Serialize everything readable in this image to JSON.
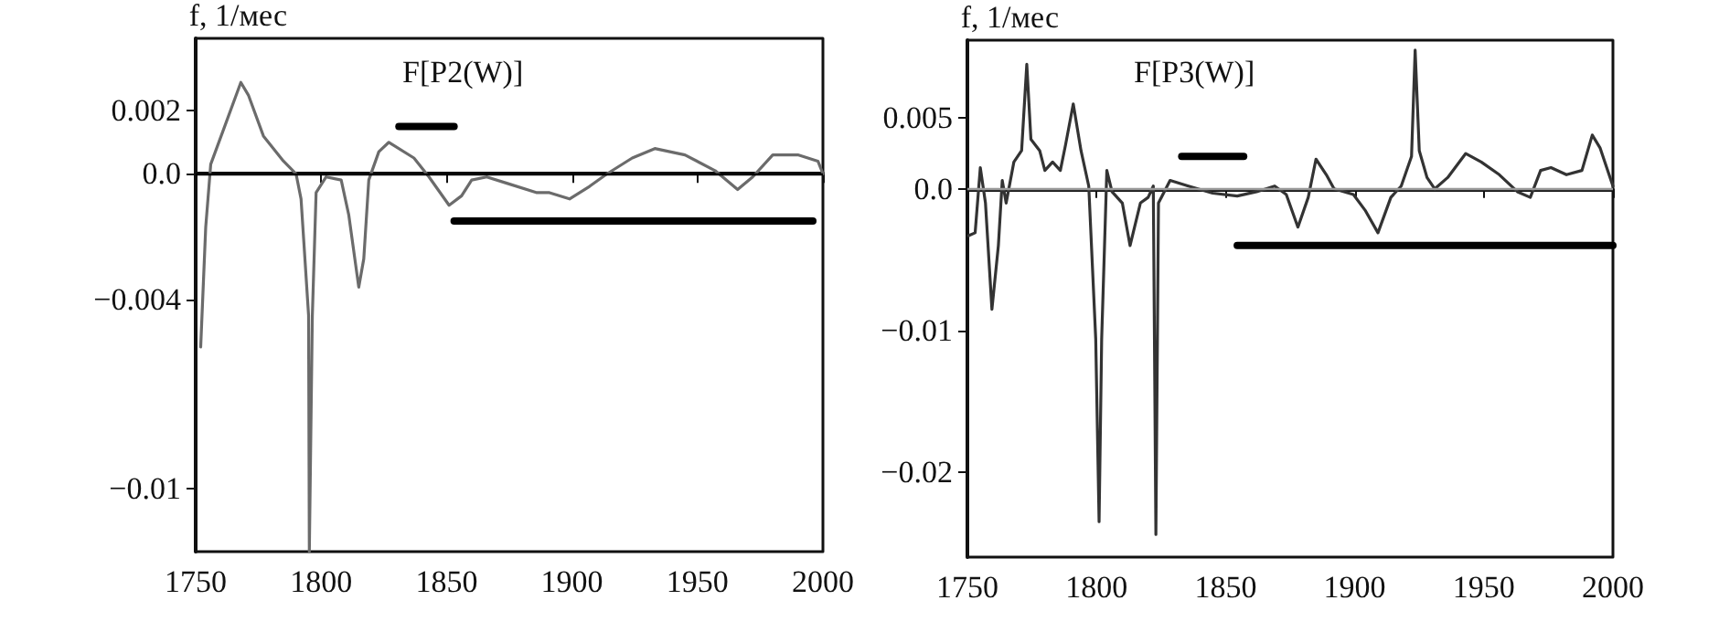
{
  "chart_data": [
    {
      "type": "line",
      "title": "F[P2(W)]",
      "ylabel": "f, 1/мес",
      "xlim": [
        1750,
        2000
      ],
      "xticks": [
        1750,
        1800,
        1850,
        1900,
        1950,
        2000
      ],
      "ylim": [
        -0.012,
        0.0043
      ],
      "yticks": [
        {
          "value": 0.002,
          "label": "0.002"
        },
        {
          "value": 0,
          "label": "0.0"
        },
        {
          "value": -0.004,
          "label": "−0.004"
        },
        {
          "value": -0.01,
          "label": "−0.01"
        }
      ],
      "marker": "none",
      "line_style": "solid",
      "ref_lines": [
        {
          "axis": "y",
          "value": 0,
          "color": "#000000"
        }
      ],
      "series": [
        {
          "color": "#6b6b6b",
          "x": [
            1752,
            1754,
            1756,
            1762,
            1768,
            1771,
            1777,
            1785,
            1790,
            1792,
            1795,
            1795.3,
            1796.5,
            1798,
            1802,
            1808,
            1811,
            1815,
            1817,
            1819,
            1823,
            1827,
            1837,
            1843,
            1851,
            1856,
            1860,
            1866,
            1874,
            1886,
            1891,
            1899,
            1907,
            1914,
            1924,
            1933,
            1945,
            1957,
            1966,
            1972,
            1980,
            1990,
            1998,
            2000
          ],
          "values": [
            -0.0055,
            -0.0017,
            0.0003,
            0.0016,
            0.0029,
            0.0025,
            0.0012,
            0.0004,
            0,
            -0.0008,
            -0.0045,
            -0.012,
            -0.0045,
            -0.0006,
            -0.0001,
            -0.0002,
            -0.0013,
            -0.0036,
            -0.0027,
            -0.0002,
            0.0007,
            0.001,
            0.0005,
            -0.0001,
            -0.001,
            -0.0007,
            -0.0002,
            -0.0001,
            -0.0003,
            -0.0006,
            -0.0006,
            -0.0008,
            -0.0004,
            0,
            0.0005,
            0.0008,
            0.0006,
            0.0001,
            -0.0005,
            -0.0001,
            0.0006,
            0.0006,
            0.0004,
            0
          ]
        },
        {
          "color": "#000000",
          "x": [
            1831,
            1853
          ],
          "values": [
            0.0015,
            0.0015
          ]
        },
        {
          "color": "#000000",
          "x": [
            1853,
            1996
          ],
          "values": [
            -0.0015,
            -0.0015
          ]
        }
      ]
    },
    {
      "type": "line",
      "title": "F[P3(W)]",
      "ylabel": "f, 1/мес",
      "xlim": [
        1750,
        2000
      ],
      "xticks": [
        1750,
        1800,
        1850,
        1900,
        1950,
        2000
      ],
      "ylim": [
        -0.026,
        0.0105
      ],
      "yticks": [
        {
          "value": 0.005,
          "label": "0.005"
        },
        {
          "value": 0,
          "label": "0.0"
        },
        {
          "value": -0.01,
          "label": "−0.01"
        },
        {
          "value": -0.02,
          "label": "−0.02"
        }
      ],
      "marker": "none",
      "line_style": "solid",
      "ref_lines": [
        {
          "axis": "y",
          "value": 0,
          "color": "#999999"
        }
      ],
      "series": [
        {
          "color": "#333333",
          "x": [
            1750.5,
            1753,
            1755,
            1757,
            1759.5,
            1762,
            1763.5,
            1765,
            1768,
            1771,
            1773,
            1774.6,
            1778,
            1780,
            1783,
            1786,
            1788,
            1791,
            1794,
            1797,
            1799.7,
            1801,
            1802,
            1804,
            1806,
            1810,
            1813,
            1817,
            1820,
            1822,
            1823,
            1824,
            1828.5,
            1835.6,
            1845,
            1854.5,
            1862,
            1869,
            1873.5,
            1878,
            1882,
            1885,
            1889,
            1892,
            1899.5,
            1904,
            1909,
            1914,
            1918,
            1922,
            1923.4,
            1925,
            1928,
            1931,
            1936,
            1943,
            1949,
            1956,
            1963,
            1968,
            1972,
            1976,
            1982,
            1988,
            1992,
            1995,
            2000
          ],
          "values": [
            -0.0033,
            -0.0031,
            0.0015,
            -0.001,
            -0.0085,
            -0.004,
            0.0006,
            -0.001,
            0.0019,
            0.0027,
            0.0088,
            0.0035,
            0.0027,
            0.0013,
            0.0019,
            0.0013,
            0.0031,
            0.006,
            0.0027,
            0.0002,
            -0.0106,
            -0.0235,
            -0.0106,
            0.0013,
            -0.0002,
            -0.001,
            -0.004,
            -0.001,
            -0.0006,
            0.0002,
            -0.0244,
            -0.001,
            0.0006,
            0.0002,
            -0.0003,
            -0.0005,
            -0.0002,
            0.0002,
            -0.0004,
            -0.0027,
            -0.0006,
            0.0021,
            0.001,
            0,
            -0.0004,
            -0.0015,
            -0.0031,
            -0.0006,
            0.0002,
            0.0023,
            0.0098,
            0.0027,
            0.0008,
            0,
            0.0008,
            0.0025,
            0.0019,
            0.001,
            -0.0002,
            -0.0006,
            0.0013,
            0.0015,
            0.001,
            0.0013,
            0.0038,
            0.0029,
            0.0002
          ]
        },
        {
          "color": "#000000",
          "x": [
            1833,
            1857
          ],
          "values": [
            0.0023,
            0.0023
          ]
        },
        {
          "color": "#000000",
          "x": [
            1854.5,
            2000
          ],
          "values": [
            -0.004,
            -0.004
          ]
        }
      ]
    }
  ]
}
